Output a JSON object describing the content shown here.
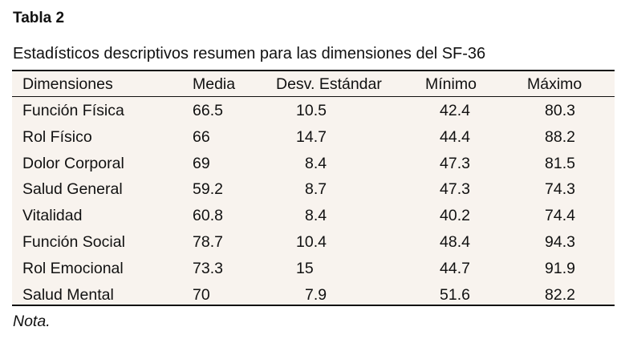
{
  "title": "Tabla 2",
  "caption": "Estadísticos descriptivos resumen para las dimensiones del SF-36",
  "headers": [
    "Dimensiones",
    "Media",
    "Desv. Estándar",
    "Mínimo",
    "Máximo"
  ],
  "rows": [
    [
      "Función Física",
      "66.5",
      "10.5",
      "42.4",
      "80.3"
    ],
    [
      "Rol Físico",
      "66",
      "14.7",
      "44.4",
      "88.2"
    ],
    [
      "Dolor Corporal",
      "69",
      "8.4",
      "47.3",
      "81.5"
    ],
    [
      "Salud General",
      "59.2",
      "8.7",
      "47.3",
      "74.3"
    ],
    [
      "Vitalidad",
      "60.8",
      "8.4",
      "40.2",
      "74.4"
    ],
    [
      "Función Social",
      "78.7",
      "10.4",
      "48.4",
      "94.3"
    ],
    [
      "Rol Emocional",
      "73.3",
      "15",
      "44.7",
      "91.9"
    ],
    [
      "Salud Mental",
      "70",
      "7.9",
      "51.6",
      "82.2"
    ]
  ],
  "note": "Nota."
}
